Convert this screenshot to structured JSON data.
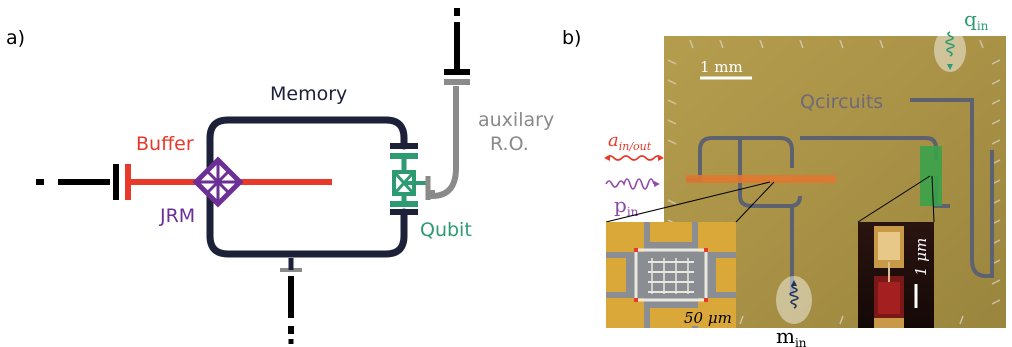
{
  "panel_a": {
    "label": "a)",
    "memory_label": "Memory",
    "buffer_label": "Buffer",
    "jrm_label": "JRM",
    "qubit_label": "Qubit",
    "aux_label_line1": "auxilary",
    "aux_label_line2": "R.O."
  },
  "panel_b": {
    "label": "b)",
    "scale_main": "1 mm",
    "chip_text": "Qcircuits",
    "a_inout_main": "a",
    "a_inout_sub": "in/out",
    "p_in_main": "p",
    "p_in_sub": "in",
    "q_in_main": "q",
    "q_in_sub": "in",
    "m_in_main": "m",
    "m_in_sub": "in",
    "inset_left_scale": "50 μm",
    "inset_right_scale": "1 μm"
  },
  "colors": {
    "memory": "#1c2038",
    "buffer": "#e8392a",
    "jrm": "#6b2f96",
    "qubit": "#2e9a72",
    "aux": "#8a8a8a",
    "mode_m": "#22335a"
  }
}
